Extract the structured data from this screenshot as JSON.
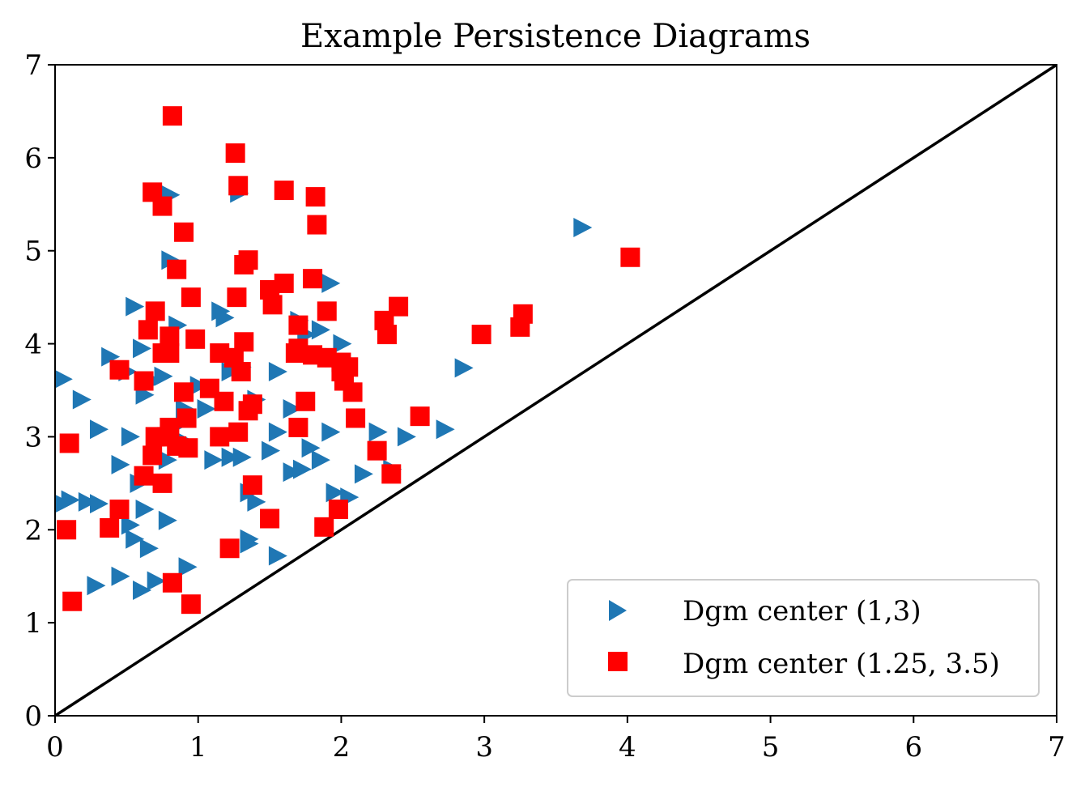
{
  "chart_data": {
    "type": "scatter",
    "title": "Example Persistence Diagrams",
    "xlabel": "",
    "ylabel": "",
    "xlim": [
      0,
      7
    ],
    "ylim": [
      0,
      7
    ],
    "xticks": [
      "0",
      "1",
      "2",
      "3",
      "4",
      "5",
      "6",
      "7"
    ],
    "yticks": [
      "0",
      "1",
      "2",
      "3",
      "4",
      "5",
      "6",
      "7"
    ],
    "grid": false,
    "legend_position": "bottom-right",
    "diagonal": {
      "from": [
        0,
        0
      ],
      "to": [
        7,
        7
      ],
      "color": "#000000"
    },
    "series": [
      {
        "name": "Dgm center (1,3)",
        "marker": "triangle-right",
        "color": "#1f77b4",
        "points": [
          [
            0.05,
            3.62
          ],
          [
            0.18,
            3.4
          ],
          [
            0.3,
            3.08
          ],
          [
            0.38,
            3.86
          ],
          [
            0.5,
            3.7
          ],
          [
            0.55,
            4.4
          ],
          [
            0.6,
            3.95
          ],
          [
            0.62,
            3.45
          ],
          [
            0.68,
            3.6
          ],
          [
            0.75,
            3.65
          ],
          [
            0.85,
            4.2
          ],
          [
            0.8,
            5.6
          ],
          [
            0.8,
            4.9
          ],
          [
            0.9,
            3.3
          ],
          [
            1.0,
            3.55
          ],
          [
            1.05,
            3.3
          ],
          [
            1.15,
            4.35
          ],
          [
            1.18,
            4.28
          ],
          [
            1.22,
            3.7
          ],
          [
            1.28,
            5.62
          ],
          [
            1.3,
            3.75
          ],
          [
            1.4,
            3.4
          ],
          [
            1.55,
            3.7
          ],
          [
            1.65,
            3.3
          ],
          [
            1.7,
            4.25
          ],
          [
            1.75,
            4.1
          ],
          [
            1.85,
            4.15
          ],
          [
            1.92,
            4.65
          ],
          [
            1.95,
            3.85
          ],
          [
            2.0,
            4.0
          ],
          [
            0.1,
            2.32
          ],
          [
            0.22,
            2.3
          ],
          [
            0.3,
            2.28
          ],
          [
            0.45,
            2.7
          ],
          [
            0.52,
            3.0
          ],
          [
            0.58,
            2.5
          ],
          [
            0.62,
            2.22
          ],
          [
            0.7,
            2.95
          ],
          [
            0.78,
            2.75
          ],
          [
            0.82,
            3.1
          ],
          [
            0.9,
            2.95
          ],
          [
            1.1,
            2.75
          ],
          [
            1.18,
            3.0
          ],
          [
            1.22,
            2.78
          ],
          [
            1.3,
            2.78
          ],
          [
            1.35,
            2.4
          ],
          [
            1.4,
            2.3
          ],
          [
            1.5,
            2.85
          ],
          [
            1.55,
            3.05
          ],
          [
            1.65,
            2.62
          ],
          [
            1.72,
            2.65
          ],
          [
            1.78,
            2.88
          ],
          [
            1.85,
            2.75
          ],
          [
            1.92,
            3.05
          ],
          [
            1.95,
            2.4
          ],
          [
            2.05,
            2.35
          ],
          [
            2.15,
            2.6
          ],
          [
            2.25,
            3.05
          ],
          [
            2.35,
            2.65
          ],
          [
            2.45,
            3.0
          ],
          [
            2.72,
            3.08
          ],
          [
            2.85,
            3.74
          ],
          [
            3.68,
            5.25
          ],
          [
            0.05,
            2.28
          ],
          [
            0.55,
            1.9
          ],
          [
            0.6,
            1.35
          ],
          [
            0.65,
            1.8
          ],
          [
            0.7,
            1.45
          ],
          [
            0.45,
            1.5
          ],
          [
            0.28,
            1.4
          ],
          [
            0.52,
            2.05
          ],
          [
            0.78,
            2.1
          ],
          [
            0.92,
            1.6
          ],
          [
            1.35,
            1.9
          ],
          [
            1.55,
            1.72
          ],
          [
            1.35,
            1.85
          ]
        ]
      },
      {
        "name": "Dgm center (1.25, 3.5)",
        "marker": "square",
        "color": "#ff0000",
        "points": [
          [
            0.82,
            6.45
          ],
          [
            1.26,
            6.05
          ],
          [
            1.28,
            5.7
          ],
          [
            1.6,
            5.65
          ],
          [
            1.82,
            5.58
          ],
          [
            0.68,
            5.63
          ],
          [
            0.75,
            5.48
          ],
          [
            0.9,
            5.2
          ],
          [
            1.83,
            5.28
          ],
          [
            0.85,
            4.8
          ],
          [
            1.32,
            4.85
          ],
          [
            1.35,
            4.9
          ],
          [
            0.95,
            4.5
          ],
          [
            1.27,
            4.5
          ],
          [
            1.5,
            4.58
          ],
          [
            1.6,
            4.65
          ],
          [
            1.8,
            4.7
          ],
          [
            1.52,
            4.42
          ],
          [
            0.7,
            4.35
          ],
          [
            1.9,
            4.35
          ],
          [
            2.4,
            4.4
          ],
          [
            2.3,
            4.25
          ],
          [
            3.27,
            4.32
          ],
          [
            3.25,
            4.18
          ],
          [
            2.32,
            4.1
          ],
          [
            2.98,
            4.1
          ],
          [
            4.02,
            4.93
          ],
          [
            0.65,
            4.15
          ],
          [
            0.8,
            4.08
          ],
          [
            0.98,
            4.05
          ],
          [
            1.32,
            4.02
          ],
          [
            1.7,
            4.2
          ],
          [
            1.7,
            3.95
          ],
          [
            1.68,
            3.9
          ],
          [
            1.8,
            3.88
          ],
          [
            1.9,
            3.85
          ],
          [
            2.0,
            3.8
          ],
          [
            2.05,
            3.75
          ],
          [
            2.0,
            3.7
          ],
          [
            0.75,
            3.9
          ],
          [
            0.8,
            3.9
          ],
          [
            1.15,
            3.9
          ],
          [
            1.25,
            3.85
          ],
          [
            1.3,
            3.7
          ],
          [
            0.45,
            3.72
          ],
          [
            0.62,
            3.6
          ],
          [
            0.9,
            3.48
          ],
          [
            1.08,
            3.52
          ],
          [
            1.18,
            3.38
          ],
          [
            1.35,
            3.28
          ],
          [
            1.38,
            3.35
          ],
          [
            2.08,
            3.48
          ],
          [
            2.02,
            3.6
          ],
          [
            1.75,
            3.38
          ],
          [
            2.1,
            3.2
          ],
          [
            2.55,
            3.22
          ],
          [
            0.92,
            3.2
          ],
          [
            0.8,
            3.1
          ],
          [
            0.7,
            3.0
          ],
          [
            0.78,
            3.0
          ],
          [
            1.15,
            3.0
          ],
          [
            1.28,
            3.05
          ],
          [
            1.7,
            3.1
          ],
          [
            0.1,
            2.93
          ],
          [
            0.68,
            2.8
          ],
          [
            0.85,
            2.9
          ],
          [
            0.93,
            2.88
          ],
          [
            0.62,
            2.58
          ],
          [
            0.75,
            2.5
          ],
          [
            1.38,
            2.48
          ],
          [
            2.25,
            2.85
          ],
          [
            2.35,
            2.6
          ],
          [
            0.45,
            2.22
          ],
          [
            0.38,
            2.02
          ],
          [
            1.5,
            2.12
          ],
          [
            1.88,
            2.03
          ],
          [
            1.98,
            2.22
          ],
          [
            0.08,
            2.0
          ],
          [
            1.22,
            1.8
          ],
          [
            0.12,
            1.23
          ],
          [
            0.82,
            1.43
          ],
          [
            0.95,
            1.2
          ]
        ]
      }
    ]
  }
}
